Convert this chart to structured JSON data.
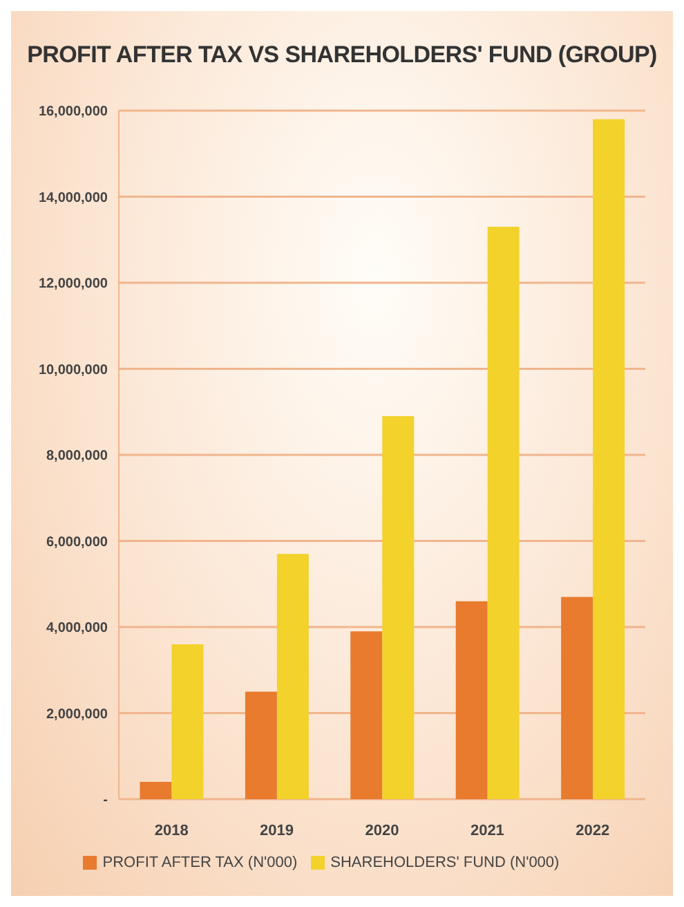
{
  "chart_data": {
    "type": "bar",
    "title": "PROFIT AFTER TAX VS SHAREHOLDERS' FUND (GROUP)",
    "categories": [
      "2018",
      "2019",
      "2020",
      "2021",
      "2022"
    ],
    "series": [
      {
        "name": "PROFIT AFTER TAX (N'000)",
        "color": "#e87b2e",
        "values": [
          400000,
          2500000,
          3900000,
          4600000,
          4700000
        ]
      },
      {
        "name": "SHAREHOLDERS' FUND (N'000)",
        "color": "#f2d22b",
        "values": [
          3600000,
          5700000,
          8900000,
          13300000,
          15800000
        ]
      }
    ],
    "ylim": [
      0,
      16000000
    ],
    "yticks": [
      {
        "value": 0,
        "label": "-"
      },
      {
        "value": 2000000,
        "label": "2,000,000"
      },
      {
        "value": 4000000,
        "label": "4,000,000"
      },
      {
        "value": 6000000,
        "label": "6,000,000"
      },
      {
        "value": 8000000,
        "label": "8,000,000"
      },
      {
        "value": 10000000,
        "label": "10,000,000"
      },
      {
        "value": 12000000,
        "label": "12,000,000"
      },
      {
        "value": 14000000,
        "label": "14,000,000"
      },
      {
        "value": 16000000,
        "label": "16,000,000"
      }
    ],
    "grid": "y",
    "legend": "bottom"
  }
}
